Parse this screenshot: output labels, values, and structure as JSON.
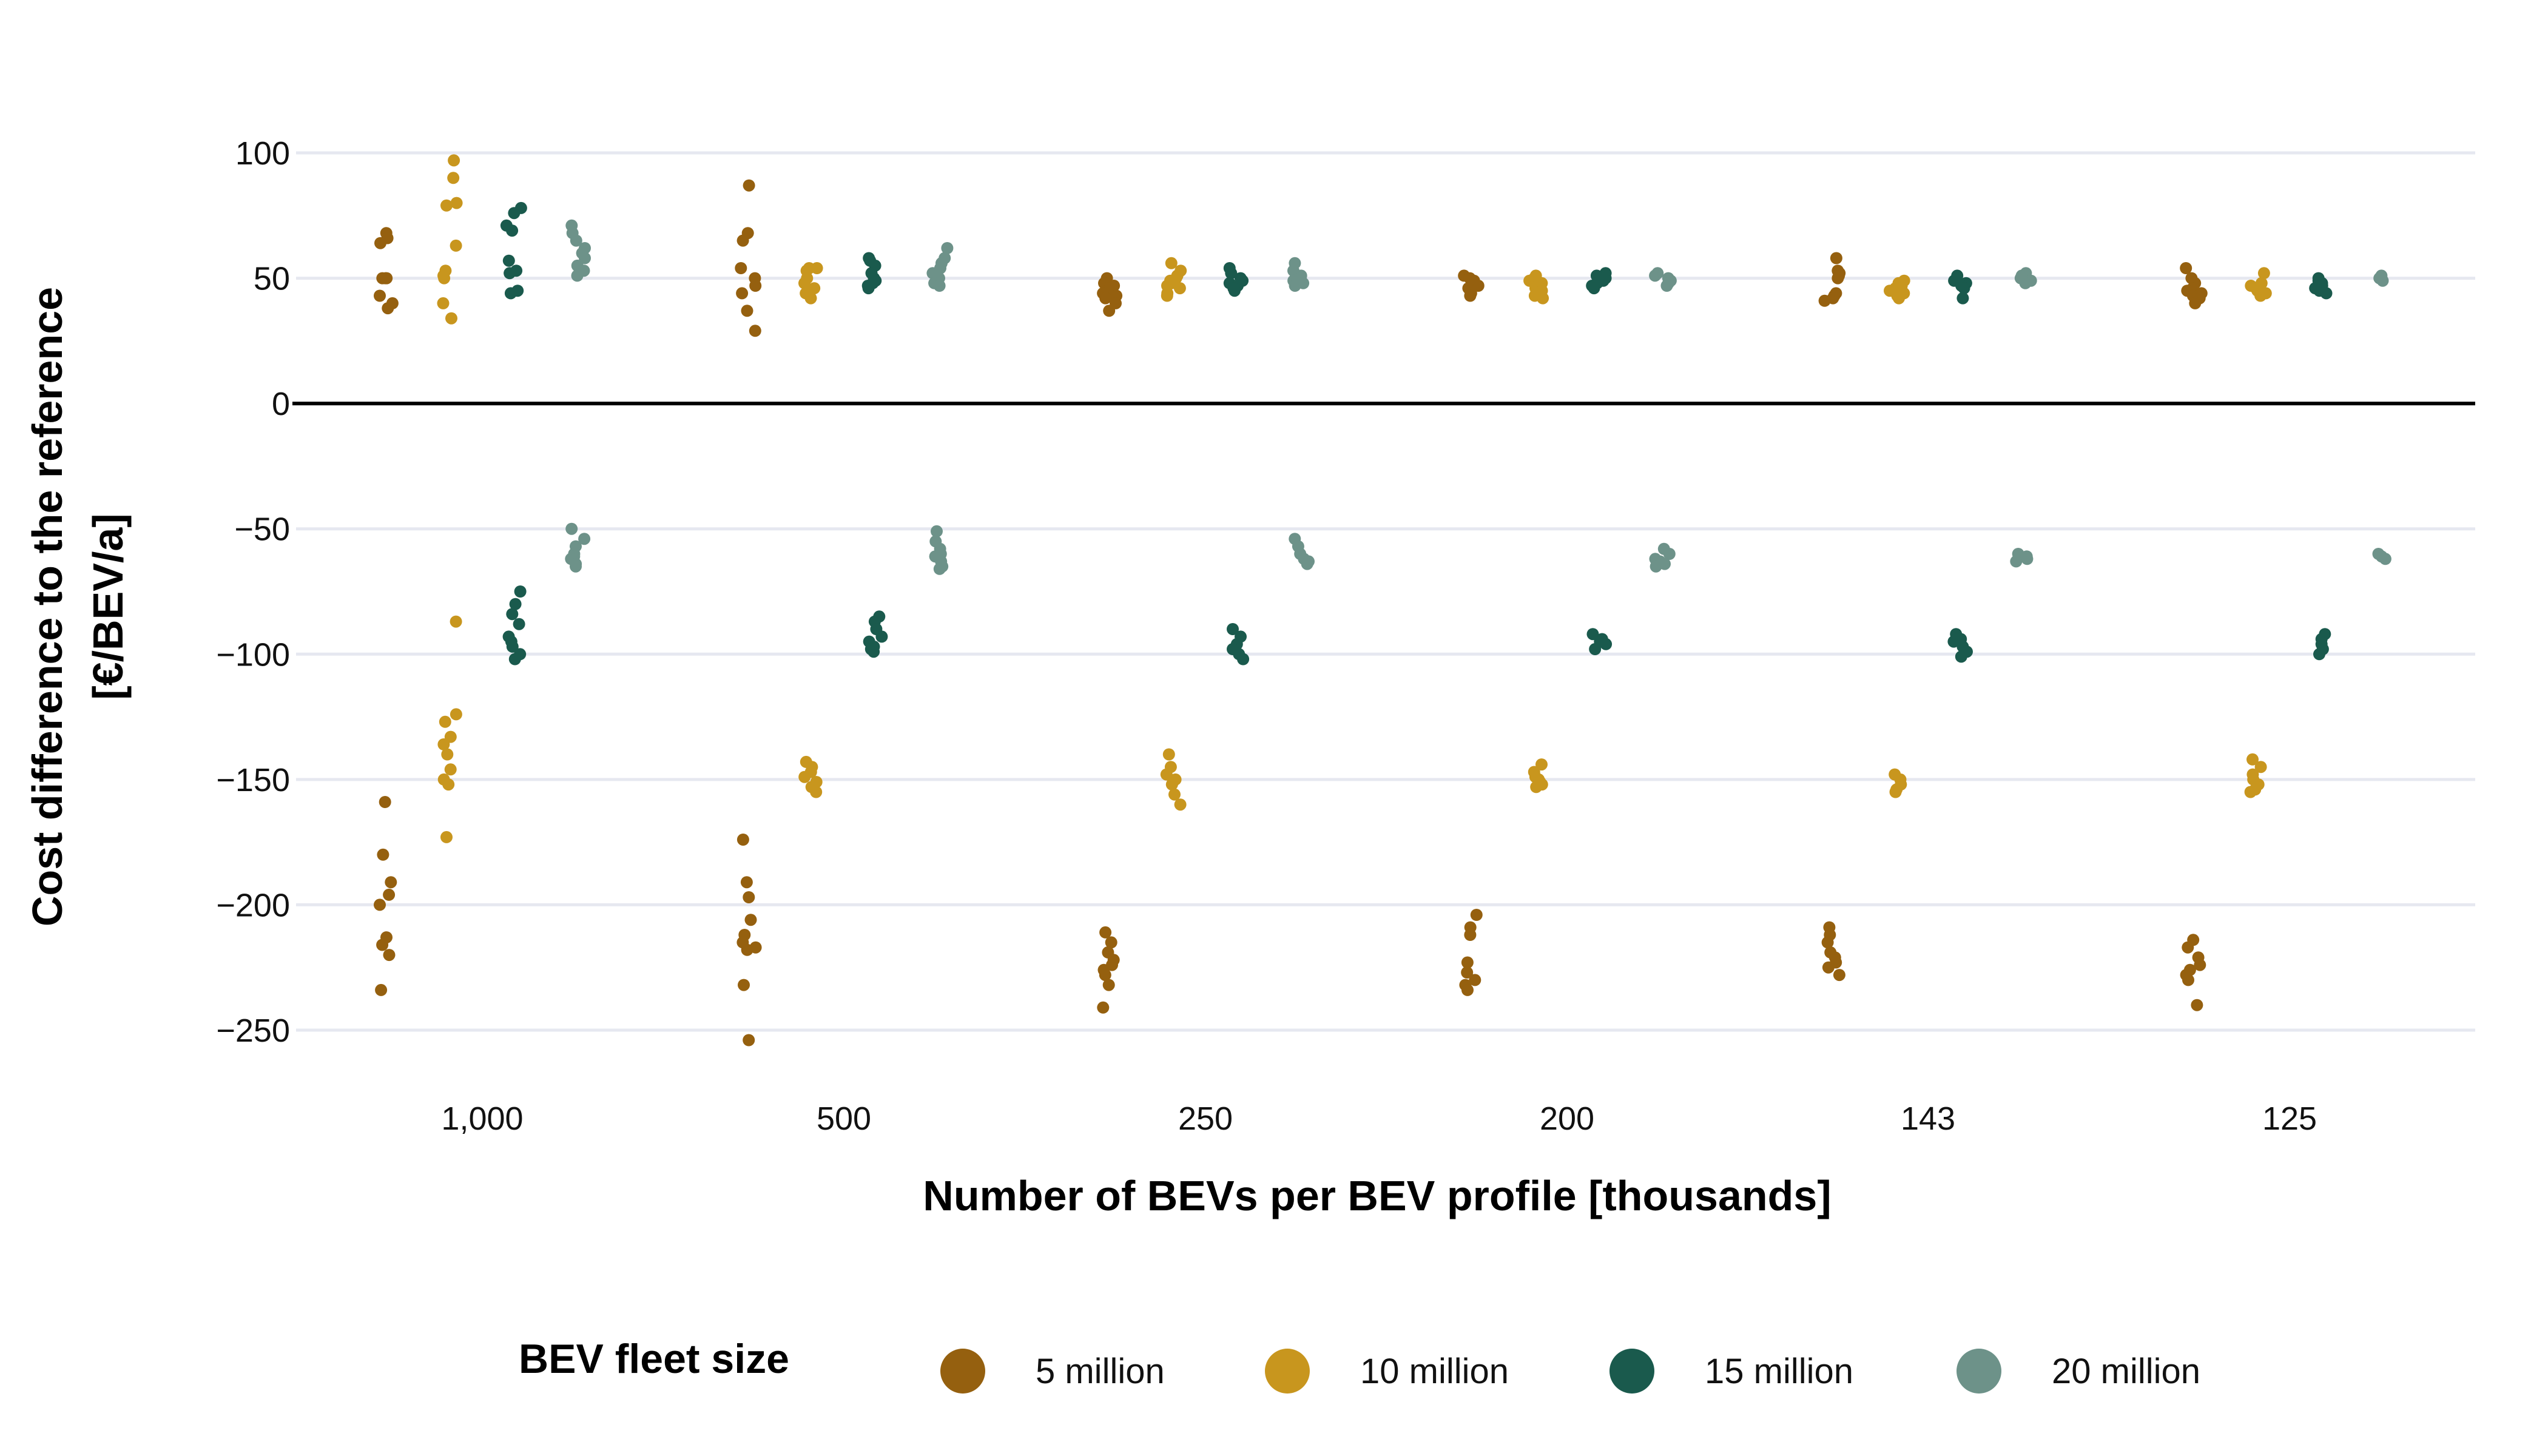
{
  "chart_data": {
    "type": "scatter",
    "xlabel": "Number of BEVs per BEV profile [thousands]",
    "ylabel_lines": [
      "Cost difference to the reference",
      "[€/BEV/a]"
    ],
    "categories": [
      "1,000",
      "500",
      "250",
      "200",
      "143",
      "125"
    ],
    "ylim": [
      -265,
      108
    ],
    "yticks": [
      100,
      50,
      0,
      -50,
      -100,
      -150,
      -200,
      -250
    ],
    "ytick_labels": [
      "100",
      "50",
      "0",
      "−50",
      "−100",
      "−150",
      "−200",
      "−250"
    ],
    "grid": true,
    "zero_line": true,
    "legend": {
      "title": "BEV fleet size",
      "position": "bottom"
    },
    "series": [
      {
        "name": "5 million",
        "color": "#95600f",
        "values": [
          [
            [
              68,
              66,
              64,
              50,
              50,
              50,
              43,
              40,
              38
            ],
            [
              -159,
              -180,
              -191,
              -196,
              -200,
              -213,
              -216,
              -220,
              -234
            ]
          ],
          [
            [
              87,
              68,
              65,
              54,
              50,
              47,
              44,
              37,
              29
            ],
            [
              -174,
              -191,
              -197,
              -206,
              -212,
              -215,
              -217,
              -218,
              -232,
              -254
            ]
          ],
          [
            [
              50,
              48,
              47,
              46,
              45,
              44,
              43,
              42,
              40,
              37
            ],
            [
              -211,
              -215,
              -219,
              -222,
              -224,
              -226,
              -228,
              -232,
              -241
            ]
          ],
          [
            [
              51,
              50,
              49,
              48,
              47,
              46,
              45,
              44,
              43
            ],
            [
              -204,
              -209,
              -212,
              -223,
              -227,
              -230,
              -232,
              -234
            ]
          ],
          [
            [
              58,
              53,
              52,
              51,
              50,
              44,
              43,
              42,
              41
            ],
            [
              -209,
              -212,
              -215,
              -219,
              -221,
              -223,
              -225,
              -228
            ]
          ],
          [
            [
              54,
              50,
              48,
              46,
              45,
              44,
              43,
              42,
              40
            ],
            [
              -214,
              -217,
              -221,
              -224,
              -226,
              -228,
              -230,
              -240
            ]
          ]
        ]
      },
      {
        "name": "10 million",
        "color": "#c8961e",
        "values": [
          [
            [
              97,
              90,
              80,
              79,
              63,
              53,
              51,
              50,
              40,
              34
            ],
            [
              -87,
              -124,
              -127,
              -133,
              -136,
              -140,
              -146,
              -150,
              -152,
              -173
            ]
          ],
          [
            [
              54,
              54,
              53,
              50,
              48,
              46,
              44,
              42
            ],
            [
              -143,
              -145,
              -147,
              -149,
              -151,
              -153,
              -155
            ]
          ],
          [
            [
              56,
              53,
              51,
              50,
              49,
              48,
              47,
              46,
              44,
              43
            ],
            [
              -140,
              -145,
              -148,
              -150,
              -151,
              -152,
              -156,
              -160
            ]
          ],
          [
            [
              51,
              50,
              49,
              48,
              47,
              46,
              45,
              44,
              43,
              42
            ],
            [
              -144,
              -147,
              -149,
              -150,
              -151,
              -152,
              -153
            ]
          ],
          [
            [
              49,
              48,
              47,
              46,
              45,
              44,
              43,
              42
            ],
            [
              -148,
              -150,
              -152,
              -154,
              -155
            ]
          ],
          [
            [
              52,
              48,
              47,
              46,
              45,
              44,
              43
            ],
            [
              -142,
              -145,
              -148,
              -150,
              -152,
              -154,
              -155
            ]
          ]
        ]
      },
      {
        "name": "15 million",
        "color": "#1a5a4d",
        "values": [
          [
            [
              78,
              76,
              71,
              69,
              57,
              53,
              52,
              45,
              44
            ],
            [
              -75,
              -80,
              -84,
              -88,
              -93,
              -95,
              -97,
              -100,
              -102
            ]
          ],
          [
            [
              58,
              57,
              55,
              52,
              50,
              49,
              48,
              47,
              46
            ],
            [
              -85,
              -87,
              -90,
              -93,
              -95,
              -97,
              -98,
              -99
            ]
          ],
          [
            [
              54,
              52,
              50,
              49,
              48,
              47,
              46,
              45
            ],
            [
              -90,
              -93,
              -96,
              -98,
              -100,
              -102
            ]
          ],
          [
            [
              52,
              51,
              50,
              49,
              48,
              47,
              46
            ],
            [
              -92,
              -94,
              -95,
              -96,
              -98
            ]
          ],
          [
            [
              51,
              50,
              49,
              48,
              47,
              46,
              42
            ],
            [
              -92,
              -94,
              -95,
              -97,
              -99,
              -101
            ]
          ],
          [
            [
              50,
              49,
              48,
              47,
              46,
              45,
              44
            ],
            [
              -92,
              -94,
              -96,
              -98,
              -100
            ]
          ]
        ]
      },
      {
        "name": "20 million",
        "color": "#6d9289",
        "values": [
          [
            [
              71,
              68,
              65,
              62,
              60,
              58,
              55,
              53,
              51
            ],
            [
              -50,
              -54,
              -57,
              -60,
              -61,
              -62,
              -64,
              -65
            ]
          ],
          [
            [
              62,
              58,
              56,
              54,
              52,
              50,
              48,
              47
            ],
            [
              -51,
              -55,
              -58,
              -60,
              -61,
              -63,
              -65,
              -66
            ]
          ],
          [
            [
              56,
              53,
              51,
              50,
              49,
              48,
              47
            ],
            [
              -54,
              -57,
              -60,
              -62,
              -63,
              -64
            ]
          ],
          [
            [
              52,
              51,
              50,
              49,
              48,
              47
            ],
            [
              -58,
              -60,
              -62,
              -63,
              -64,
              -65
            ]
          ],
          [
            [
              52,
              51,
              50,
              49,
              48
            ],
            [
              -60,
              -61,
              -62,
              -63
            ]
          ],
          [
            [
              51,
              50,
              49
            ],
            [
              -60,
              -61,
              -62
            ]
          ]
        ]
      }
    ]
  }
}
